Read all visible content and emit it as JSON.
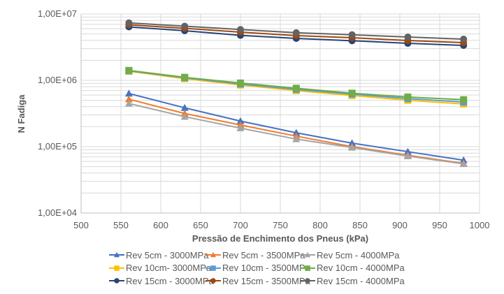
{
  "chart_data": {
    "type": "line",
    "title": "",
    "xlabel": "Pressão de Enchimento dos Pneus (kPa)",
    "ylabel": "N Fadiga",
    "xlim": [
      500,
      1000
    ],
    "ylim": [
      10000,
      10000000
    ],
    "yscale": "log",
    "grid": true,
    "legend_position": "bottom",
    "x_ticks": [
      "500",
      "550",
      "600",
      "650",
      "700",
      "750",
      "800",
      "850",
      "900",
      "950",
      "1000"
    ],
    "y_ticks": [
      "1,00E+04",
      "1,00E+05",
      "1,00E+06",
      "1,00E+07"
    ],
    "x": [
      560,
      630,
      700,
      770,
      840,
      910,
      980
    ],
    "series": [
      {
        "name": "Rev 5cm - 3000MPa",
        "color": "#4472C4",
        "marker": "triangle",
        "values": [
          633000,
          385000,
          243000,
          162000,
          113000,
          84000,
          62500
        ]
      },
      {
        "name": "Rev 5cm - 3500MPa",
        "color": "#ED7D31",
        "marker": "triangle",
        "values": [
          519000,
          316000,
          212000,
          144000,
          100000,
          74000,
          56000
        ]
      },
      {
        "name": "Rev 5cm - 4000MPa",
        "color": "#A5A5A5",
        "marker": "triangle",
        "values": [
          447000,
          283000,
          190000,
          130000,
          97000,
          72000,
          55000
        ]
      },
      {
        "name": "Rev 10cm- 3000MPa",
        "color": "#FFC000",
        "marker": "square",
        "values": [
          1370000,
          1060000,
          850000,
          700000,
          590000,
          500000,
          440000
        ]
      },
      {
        "name": "Rev 10cm - 3500MPa",
        "color": "#5B9BD5",
        "marker": "square",
        "values": [
          1390000,
          1090000,
          880000,
          730000,
          620000,
          530000,
          470000
        ]
      },
      {
        "name": "Rev 10cm - 4000MPa",
        "color": "#70AD47",
        "marker": "square",
        "values": [
          1410000,
          1110000,
          910000,
          760000,
          640000,
          560000,
          510000
        ]
      },
      {
        "name": "Rev 15cm - 3000MPa",
        "color": "#264478",
        "marker": "circle",
        "values": [
          6390000,
          5590000,
          4760000,
          4280000,
          3950000,
          3610000,
          3360000
        ]
      },
      {
        "name": "Rev 15cm - 3500MPa",
        "color": "#9E480E",
        "marker": "circle",
        "values": [
          6870000,
          6080000,
          5320000,
          4720000,
          4390000,
          3980000,
          3700000
        ]
      },
      {
        "name": "Rev 15cm - 4000MPa",
        "color": "#636363",
        "marker": "circle",
        "values": [
          7350000,
          6540000,
          5830000,
          5210000,
          4860000,
          4490000,
          4180000
        ]
      }
    ],
    "legend_order": [
      0,
      1,
      2,
      3,
      4,
      5,
      6,
      7,
      8
    ]
  }
}
